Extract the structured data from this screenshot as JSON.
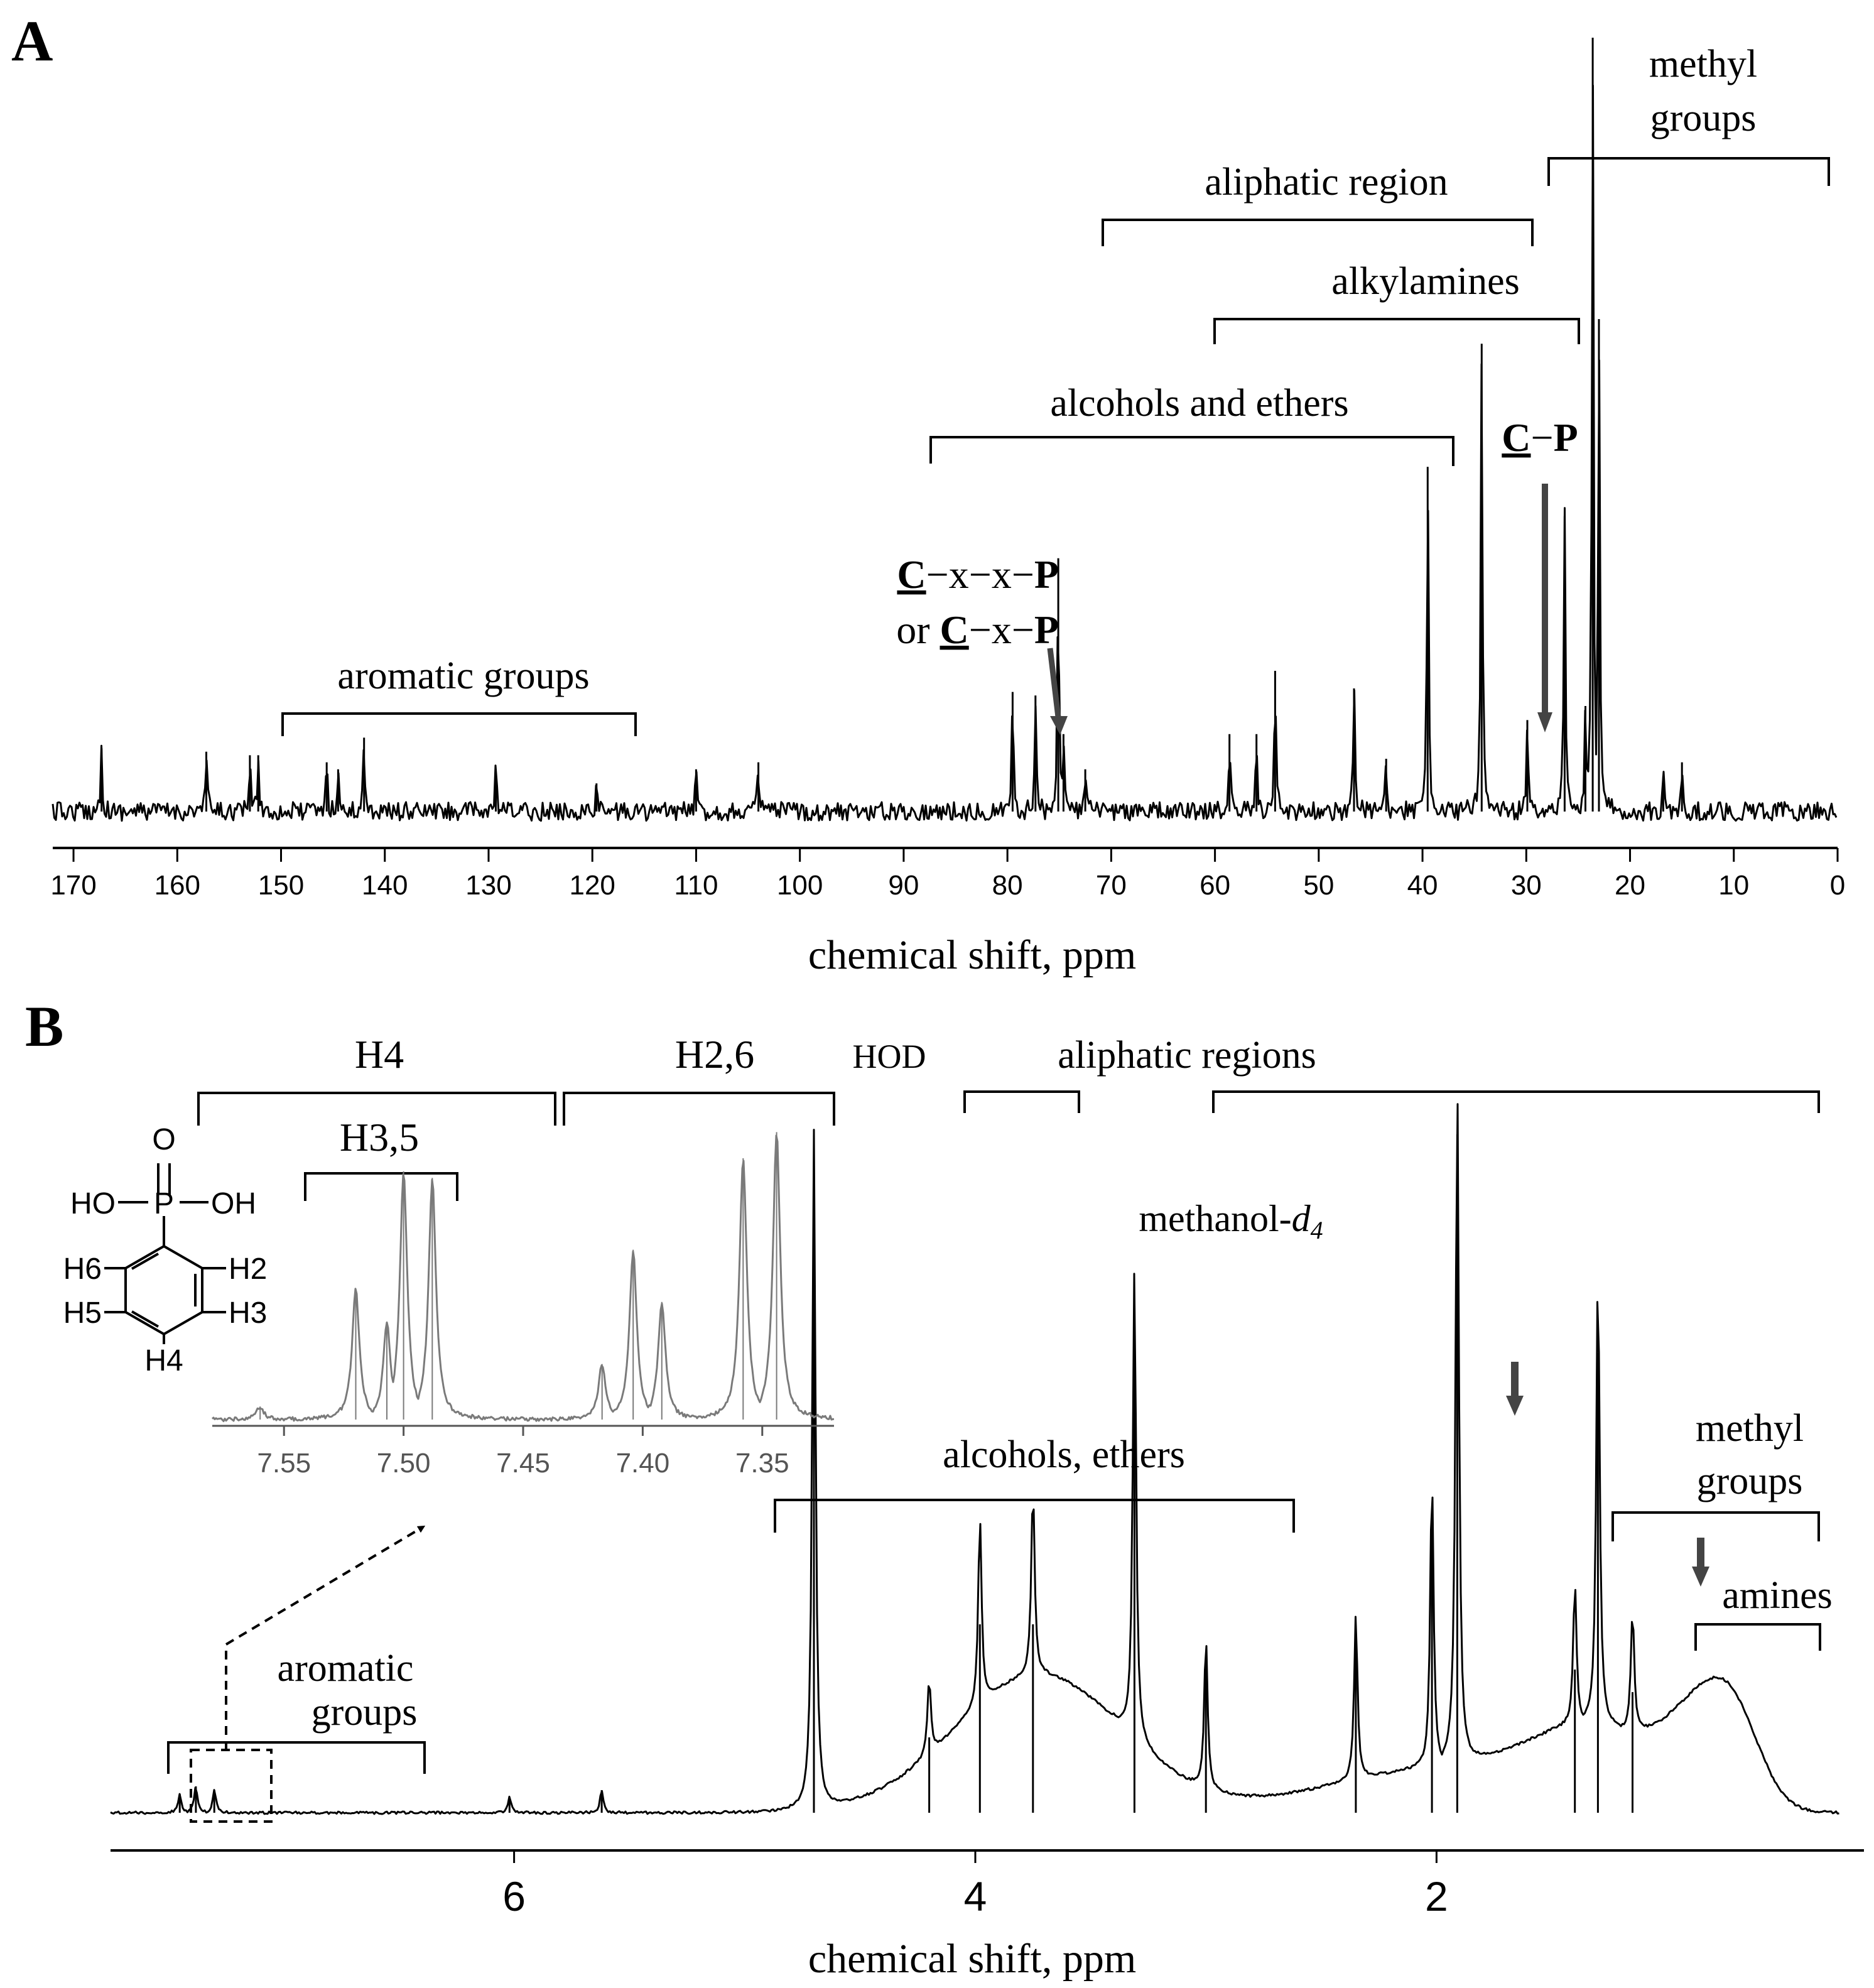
{
  "panel_a": {
    "panel_label": "A",
    "xlabel": "chemical shift, ppm",
    "tick_labels": [
      "170",
      "160",
      "150",
      "140",
      "130",
      "120",
      "110",
      "100",
      "90",
      "80",
      "70",
      "60",
      "50",
      "40",
      "30",
      "20",
      "10",
      "0"
    ],
    "labels": {
      "aromatic_groups": "aromatic groups",
      "alcohols_and_ethers": "alcohols and ethers",
      "alkylamines": "alkylamines",
      "aliphatic_region": "aliphatic region",
      "methyl_line1": "methyl",
      "methyl_line2": "groups",
      "cxxp_c": "C",
      "cxxp_mid": "−x−x−",
      "cxxp_p": "P",
      "or_word": "or ",
      "cxp_c": "C",
      "cxp_mid": "−x−",
      "cxp_p": "P",
      "cp_c": "C",
      "cp_dash": "−",
      "cp_p": "P"
    }
  },
  "panel_b": {
    "panel_label": "B",
    "xlabel": "chemical shift, ppm",
    "tick_labels": [
      "6",
      "4",
      "2"
    ],
    "labels": {
      "h4": "H4",
      "h26": "H2,6",
      "h35": "H3,5",
      "hod": "HOD",
      "aliphatic_regions": "aliphatic regions",
      "methanol_prefix": "methanol-",
      "methanol_d": "d",
      "methanol_sub": "4",
      "alcohols_ethers": "alcohols, ethers",
      "methyl_line1": "methyl",
      "methyl_line2": "groups",
      "amines": "amines",
      "aromatic_line1": "aromatic",
      "aromatic_line2": "groups"
    },
    "inset": {
      "tick_labels": [
        "7.55",
        "7.50",
        "7.45",
        "7.40",
        "7.35"
      ]
    },
    "structure": {
      "o": "O",
      "p": "P",
      "ho": "HO",
      "oh": "OH",
      "h2": "H2",
      "h3": "H3",
      "h4": "H4",
      "h5": "H5",
      "h6": "H6"
    }
  },
  "chart_data": [
    {
      "type": "line",
      "panel": "A",
      "xlabel": "chemical shift, ppm",
      "xlim": [
        172,
        0
      ],
      "x_reversed": true,
      "xticks": [
        170,
        160,
        150,
        140,
        130,
        120,
        110,
        100,
        90,
        80,
        70,
        60,
        50,
        40,
        30,
        20,
        10,
        0
      ],
      "grid": false,
      "baseline_noise": true,
      "peaks": [
        {
          "x": 167.3,
          "h": 0.18
        },
        {
          "x": 157.2,
          "h": 0.17
        },
        {
          "x": 153.0,
          "h": 0.16
        },
        {
          "x": 152.2,
          "h": 0.16
        },
        {
          "x": 145.6,
          "h": 0.14
        },
        {
          "x": 144.5,
          "h": 0.12
        },
        {
          "x": 142.0,
          "h": 0.21
        },
        {
          "x": 129.3,
          "h": 0.12
        },
        {
          "x": 119.6,
          "h": 0.08
        },
        {
          "x": 110.0,
          "h": 0.12
        },
        {
          "x": 104.0,
          "h": 0.14
        },
        {
          "x": 79.5,
          "h": 0.34
        },
        {
          "x": 77.3,
          "h": 0.33
        },
        {
          "x": 75.1,
          "h": 0.72
        },
        {
          "x": 74.6,
          "h": 0.22
        },
        {
          "x": 72.5,
          "h": 0.12
        },
        {
          "x": 58.6,
          "h": 0.22
        },
        {
          "x": 56.0,
          "h": 0.22
        },
        {
          "x": 54.2,
          "h": 0.4
        },
        {
          "x": 46.6,
          "h": 0.35
        },
        {
          "x": 43.5,
          "h": 0.15
        },
        {
          "x": 39.5,
          "h": 0.98
        },
        {
          "x": 34.3,
          "h": 1.33
        },
        {
          "x": 29.9,
          "h": 0.26
        },
        {
          "x": 26.3,
          "h": 0.84
        },
        {
          "x": 24.3,
          "h": 0.3
        },
        {
          "x": 23.6,
          "h": 2.2
        },
        {
          "x": 23.0,
          "h": 1.4
        },
        {
          "x": 16.8,
          "h": 0.1
        },
        {
          "x": 15.0,
          "h": 0.14
        }
      ],
      "annotations": [
        "aromatic groups",
        "alcohols and ethers",
        "alkylamines",
        "aliphatic region",
        "methyl groups",
        "C−x−x−P or C−x−P",
        "C−P"
      ]
    },
    {
      "type": "line",
      "panel": "B",
      "xlabel": "chemical shift, ppm",
      "xlim": [
        7.75,
        0.25
      ],
      "x_reversed": true,
      "xticks": [
        6,
        4,
        2
      ],
      "grid": false,
      "peaks": [
        {
          "x": 7.45,
          "h": 0.05
        },
        {
          "x": 7.38,
          "h": 0.07
        },
        {
          "x": 7.3,
          "h": 0.06
        },
        {
          "x": 6.02,
          "h": 0.04
        },
        {
          "x": 5.62,
          "h": 0.06
        },
        {
          "x": 4.7,
          "h": 1.8
        },
        {
          "x": 4.2,
          "h": 0.2
        },
        {
          "x": 3.98,
          "h": 0.5
        },
        {
          "x": 3.75,
          "h": 0.5
        },
        {
          "x": 3.31,
          "h": 1.25
        },
        {
          "x": 3.0,
          "h": 0.4
        },
        {
          "x": 2.35,
          "h": 0.44
        },
        {
          "x": 2.02,
          "h": 0.78
        },
        {
          "x": 1.91,
          "h": 1.8
        },
        {
          "x": 1.4,
          "h": 0.38
        },
        {
          "x": 1.3,
          "h": 1.22
        },
        {
          "x": 1.15,
          "h": 0.32
        }
      ],
      "annotations": [
        "aromatic groups",
        "alcohols, ethers",
        "HOD",
        "aliphatic regions",
        "methanol-d4",
        "methyl groups",
        "amines"
      ]
    },
    {
      "type": "line",
      "panel": "B-inset",
      "xlim": [
        7.58,
        7.32
      ],
      "x_reversed": true,
      "xticks": [
        7.55,
        7.5,
        7.45,
        7.4,
        7.35
      ],
      "peaks": [
        {
          "x": 7.56,
          "h": 0.04
        },
        {
          "x": 7.52,
          "h": 0.4
        },
        {
          "x": 7.507,
          "h": 0.3
        },
        {
          "x": 7.5,
          "h": 0.76
        },
        {
          "x": 7.488,
          "h": 0.74
        },
        {
          "x": 7.417,
          "h": 0.17
        },
        {
          "x": 7.404,
          "h": 0.52
        },
        {
          "x": 7.392,
          "h": 0.36
        },
        {
          "x": 7.358,
          "h": 0.8
        },
        {
          "x": 7.344,
          "h": 0.88
        }
      ],
      "annotations": [
        "H4",
        "H2,6",
        "H3,5"
      ]
    }
  ]
}
